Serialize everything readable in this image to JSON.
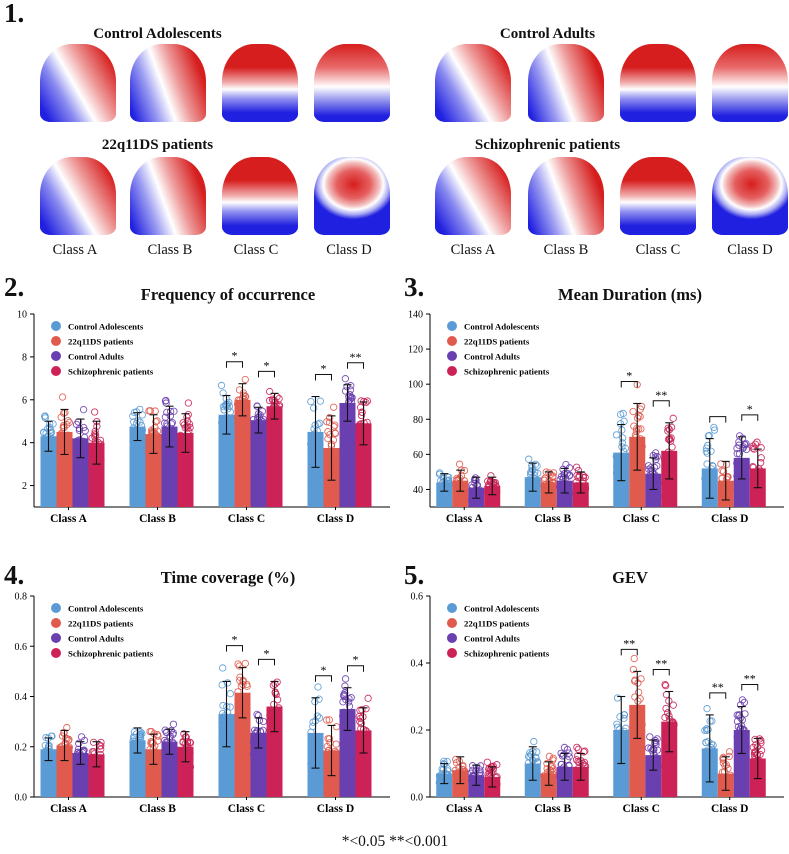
{
  "figure": {
    "panel_labels": [
      "1.",
      "2.",
      "3.",
      "4.",
      "5."
    ],
    "footnote": "*<0.05  **<0.001",
    "colors": {
      "control_adolescents": "#5b9bd5",
      "q22_patients": "#e05a4e",
      "control_adults": "#6a3fb0",
      "schizophrenic": "#cc2257"
    }
  },
  "maps": {
    "groups": [
      {
        "title": "Control Adolescents",
        "style": "a"
      },
      {
        "title": "Control Adults",
        "style": "b"
      },
      {
        "title": "22q11DS patients",
        "style": "c"
      },
      {
        "title": "Schizophrenic patients",
        "style": "d"
      }
    ],
    "class_labels": [
      "Class A",
      "Class B",
      "Class C",
      "Class D"
    ]
  },
  "chart_data": [
    {
      "type": "bar",
      "title": "Frequency of occurrence",
      "categories": [
        "Class A",
        "Class B",
        "Class C",
        "Class D"
      ],
      "ylim": [
        1,
        10
      ],
      "yticks": [
        2,
        4,
        6,
        8,
        10
      ],
      "legend": "top-left",
      "series": [
        {
          "name": "Control Adolescents",
          "values": [
            4.3,
            4.75,
            5.3,
            4.5
          ],
          "errors": [
            0.7,
            0.65,
            0.9,
            1.65
          ]
        },
        {
          "name": "22q11DS patients",
          "values": [
            4.5,
            4.4,
            6.0,
            3.75
          ],
          "errors": [
            1.05,
            0.9,
            0.75,
            1.5
          ]
        },
        {
          "name": "Control Adults",
          "values": [
            4.2,
            4.75,
            5.05,
            5.85
          ],
          "errors": [
            0.9,
            0.95,
            0.6,
            0.85
          ]
        },
        {
          "name": "Schizophrenic patients",
          "values": [
            4.0,
            4.45,
            5.7,
            4.9
          ],
          "errors": [
            1.0,
            0.9,
            0.6,
            1.0
          ]
        }
      ],
      "significance": [
        {
          "category": "Class C",
          "pair": [
            0,
            1
          ],
          "label": "*"
        },
        {
          "category": "Class C",
          "pair": [
            2,
            3
          ],
          "label": "*"
        },
        {
          "category": "Class D",
          "pair": [
            0,
            1
          ],
          "label": "*"
        },
        {
          "category": "Class D",
          "pair": [
            2,
            3
          ],
          "label": "**"
        }
      ]
    },
    {
      "type": "bar",
      "title": "Mean Duration (ms)",
      "categories": [
        "Class A",
        "Class B",
        "Class C",
        "Class D"
      ],
      "ylim": [
        30,
        140
      ],
      "yticks": [
        40,
        60,
        80,
        100,
        120,
        140
      ],
      "legend": "top-left",
      "series": [
        {
          "name": "Control Adolescents",
          "values": [
            44,
            47,
            61,
            52
          ],
          "errors": [
            5,
            8,
            16,
            17
          ]
        },
        {
          "name": "22q11DS patients",
          "values": [
            45,
            44,
            70,
            45
          ],
          "errors": [
            6,
            6,
            19,
            11
          ]
        },
        {
          "name": "Control Adults",
          "values": [
            41,
            45,
            49,
            58
          ],
          "errors": [
            6,
            7,
            9,
            12
          ]
        },
        {
          "name": "Schizophrenic patients",
          "values": [
            42,
            44,
            62,
            52
          ],
          "errors": [
            5,
            6,
            16,
            11
          ]
        }
      ],
      "significance": [
        {
          "category": "Class C",
          "pair": [
            0,
            1
          ],
          "label": "*"
        },
        {
          "category": "Class C",
          "pair": [
            2,
            3
          ],
          "label": "**"
        },
        {
          "category": "Class D",
          "pair": [
            0,
            1
          ],
          "label": ""
        },
        {
          "category": "Class D",
          "pair": [
            2,
            3
          ],
          "label": "*"
        }
      ]
    },
    {
      "type": "bar",
      "title": "Time coverage (%)",
      "categories": [
        "Class A",
        "Class B",
        "Class C",
        "Class D"
      ],
      "ylim": [
        0,
        0.8
      ],
      "yticks": [
        0.0,
        0.2,
        0.4,
        0.6,
        0.8
      ],
      "legend": "top-left",
      "series": [
        {
          "name": "Control Adolescents",
          "values": [
            0.19,
            0.225,
            0.33,
            0.255
          ],
          "errors": [
            0.045,
            0.05,
            0.13,
            0.14
          ]
        },
        {
          "name": "22q11DS patients",
          "values": [
            0.205,
            0.19,
            0.415,
            0.185
          ],
          "errors": [
            0.06,
            0.06,
            0.1,
            0.1
          ]
        },
        {
          "name": "Control Adults",
          "values": [
            0.175,
            0.22,
            0.255,
            0.35
          ],
          "errors": [
            0.045,
            0.05,
            0.06,
            0.085
          ]
        },
        {
          "name": "Schizophrenic patients",
          "values": [
            0.17,
            0.2,
            0.36,
            0.265
          ],
          "errors": [
            0.05,
            0.06,
            0.1,
            0.09
          ]
        }
      ],
      "significance": [
        {
          "category": "Class C",
          "pair": [
            0,
            1
          ],
          "label": "*"
        },
        {
          "category": "Class C",
          "pair": [
            2,
            3
          ],
          "label": "*"
        },
        {
          "category": "Class D",
          "pair": [
            0,
            1
          ],
          "label": "*"
        },
        {
          "category": "Class D",
          "pair": [
            2,
            3
          ],
          "label": "*"
        }
      ]
    },
    {
      "type": "bar",
      "title": "GEV",
      "categories": [
        "Class A",
        "Class B",
        "Class C",
        "Class D"
      ],
      "ylim": [
        0,
        0.6
      ],
      "yticks": [
        0.0,
        0.2,
        0.4,
        0.6
      ],
      "legend": "top-left",
      "series": [
        {
          "name": "Control Adolescents",
          "values": [
            0.07,
            0.1,
            0.2,
            0.145
          ],
          "errors": [
            0.03,
            0.05,
            0.1,
            0.1
          ]
        },
        {
          "name": "22q11DS patients",
          "values": [
            0.08,
            0.07,
            0.275,
            0.07
          ],
          "errors": [
            0.04,
            0.035,
            0.1,
            0.05
          ]
        },
        {
          "name": "Control Adults",
          "values": [
            0.065,
            0.09,
            0.125,
            0.2
          ],
          "errors": [
            0.03,
            0.04,
            0.045,
            0.07
          ]
        },
        {
          "name": "Schizophrenic patients",
          "values": [
            0.06,
            0.09,
            0.225,
            0.115
          ],
          "errors": [
            0.03,
            0.04,
            0.09,
            0.06
          ]
        }
      ],
      "significance": [
        {
          "category": "Class C",
          "pair": [
            0,
            1
          ],
          "label": "**"
        },
        {
          "category": "Class C",
          "pair": [
            2,
            3
          ],
          "label": "**"
        },
        {
          "category": "Class D",
          "pair": [
            0,
            1
          ],
          "label": "**"
        },
        {
          "category": "Class D",
          "pair": [
            2,
            3
          ],
          "label": "**"
        }
      ]
    }
  ]
}
